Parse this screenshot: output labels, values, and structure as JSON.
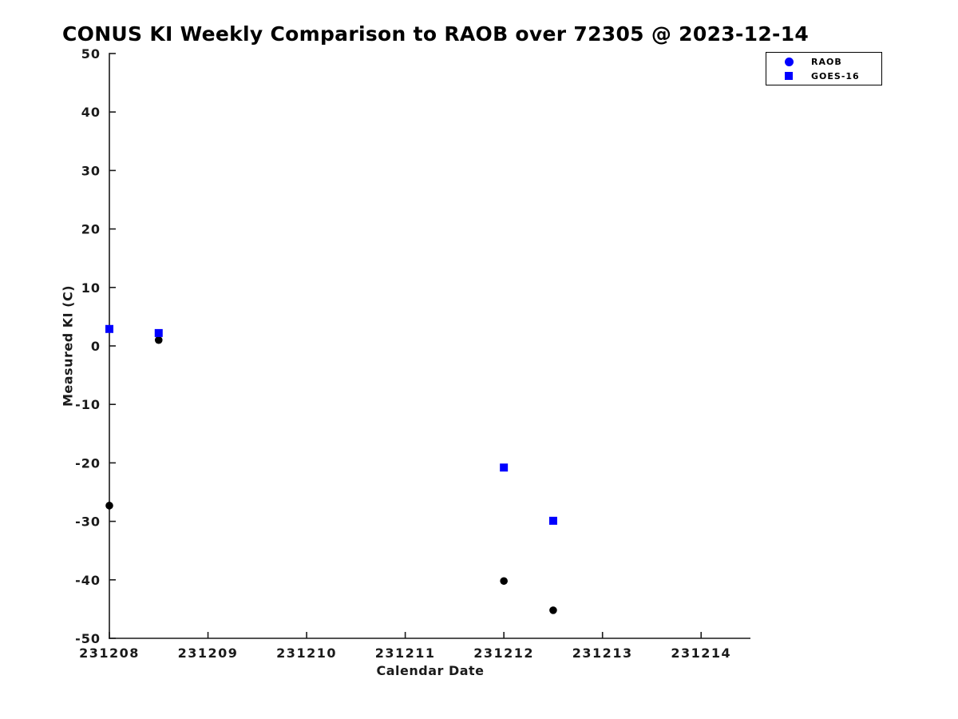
{
  "title": "CONUS KI Weekly Comparison to RAOB over 72305 @ 2023-12-14",
  "colors": {
    "background": "#ffffff",
    "axis": "#1a1a1a",
    "title_text": "#000000",
    "raob_marker": "#000000",
    "goes16_marker": "#0000ff",
    "legend_border": "#000000"
  },
  "chart_data": {
    "type": "scatter",
    "title": "CONUS KI Weekly Comparison to RAOB over 72305 @ 2023-12-14",
    "xlabel": "Calendar Date",
    "ylabel": "Measured KI (C)",
    "xlim": [
      231208,
      231214.5
    ],
    "ylim": [
      -50,
      50
    ],
    "xticks": [
      231208,
      231209,
      231210,
      231211,
      231212,
      231213,
      231214
    ],
    "yticks": [
      50,
      40,
      30,
      20,
      10,
      0,
      -10,
      -20,
      -30,
      -40,
      -50
    ],
    "grid": false,
    "tick_direction": "in",
    "legend": {
      "position": "top-right-outside",
      "entries": [
        "RAOB",
        "GOES-16"
      ]
    },
    "series": [
      {
        "name": "RAOB",
        "marker": "circle",
        "color": "#000000",
        "legend_color": "#0000ff",
        "points": [
          [
            231208.0,
            -27.3
          ],
          [
            231208.5,
            1.0
          ],
          [
            231212.0,
            -40.2
          ],
          [
            231212.5,
            -45.2
          ]
        ]
      },
      {
        "name": "GOES-16",
        "marker": "square",
        "color": "#0000ff",
        "legend_color": "#0000ff",
        "points": [
          [
            231208.0,
            2.9
          ],
          [
            231208.5,
            2.2
          ],
          [
            231212.0,
            -20.8
          ],
          [
            231212.5,
            -29.9
          ]
        ]
      }
    ]
  }
}
